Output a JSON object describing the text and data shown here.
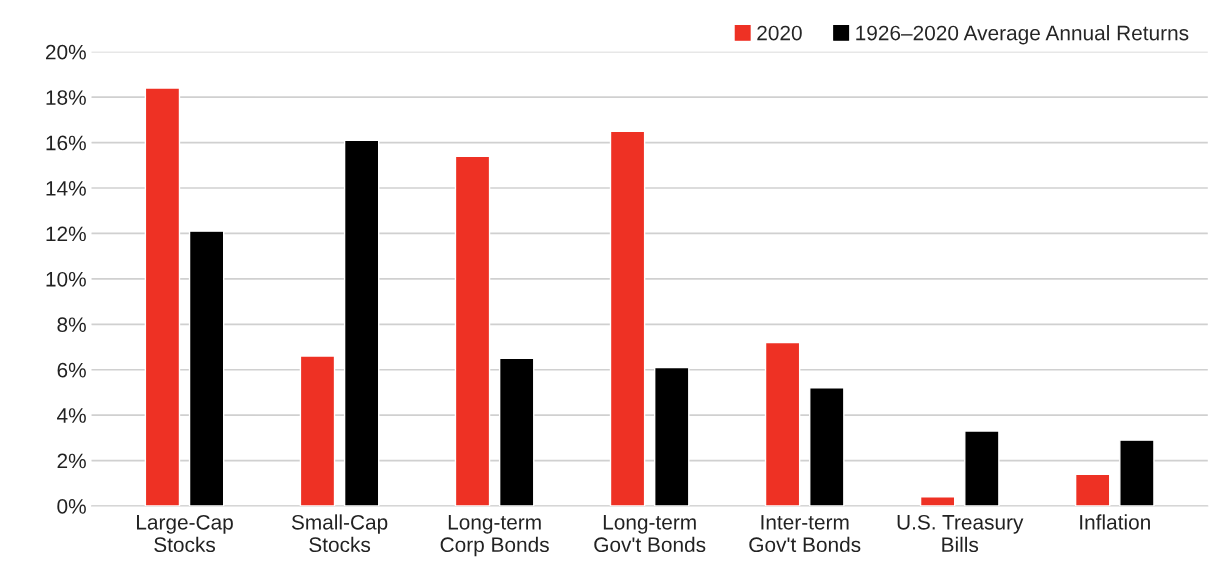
{
  "chart_data": {
    "type": "bar",
    "categories": [
      "Large-Cap\nStocks",
      "Small-Cap\nStocks",
      "Long-term\nCorp Bonds",
      "Long-term\nGov't Bonds",
      "Inter-term\nGov't Bonds",
      "U.S. Treasury\nBills",
      "Inflation"
    ],
    "series": [
      {
        "name": "2020",
        "color": "#ee3124",
        "values": [
          18.4,
          6.6,
          15.4,
          16.5,
          7.2,
          0.4,
          1.4
        ]
      },
      {
        "name": "1926–2020 Average Annual Returns",
        "color": "#000000",
        "values": [
          12.1,
          16.1,
          6.5,
          6.1,
          5.2,
          3.3,
          2.9
        ]
      }
    ],
    "ylim": [
      0,
      20
    ],
    "yticks": [
      {
        "value": 0,
        "label": "0%"
      },
      {
        "value": 2,
        "label": "2%"
      },
      {
        "value": 4,
        "label": "4%"
      },
      {
        "value": 6,
        "label": "6%"
      },
      {
        "value": 8,
        "label": "8%"
      },
      {
        "value": 10,
        "label": "10%"
      },
      {
        "value": 12,
        "label": "12%"
      },
      {
        "value": 14,
        "label": "14%"
      },
      {
        "value": 16,
        "label": "16%"
      },
      {
        "value": 18,
        "label": "18%"
      },
      {
        "value": 20,
        "label": "20%"
      }
    ],
    "grid": "y",
    "legend": "top right"
  }
}
